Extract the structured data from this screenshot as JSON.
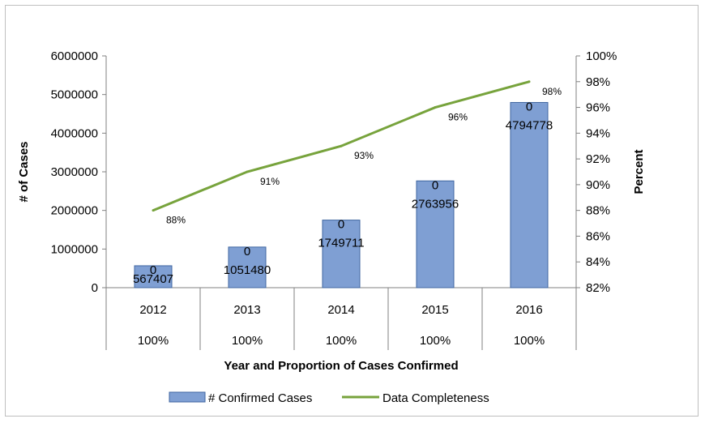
{
  "chart_data": {
    "type": "bar",
    "categories": [
      "2012",
      "2013",
      "2014",
      "2015",
      "2016"
    ],
    "category_sublabels": [
      "100%",
      "100%",
      "100%",
      "100%",
      "100%"
    ],
    "series": [
      {
        "name": "# Confirmed Cases",
        "type": "bar",
        "axis": "left",
        "values": [
          567407,
          1051480,
          1749711,
          2763956,
          4794778
        ],
        "value_labels": [
          "567407",
          "1051480",
          "1749711",
          "2763956",
          "4794778"
        ],
        "top_labels": [
          "0",
          "0",
          "0",
          "0",
          "0"
        ],
        "color": "#7f9fd3",
        "border_color": "#3f66a0"
      },
      {
        "name": "Data Completeness",
        "type": "line",
        "axis": "right",
        "values": [
          88,
          91,
          93,
          96,
          98
        ],
        "value_labels": [
          "88%",
          "91%",
          "93%",
          "96%",
          "98%"
        ],
        "color": "#77a33c"
      }
    ],
    "title": "",
    "xlabel": "Year and Proportion of Cases Confirmed",
    "ylabel": "# of Cases",
    "y2label": "Percent",
    "ylim": [
      0,
      6000000
    ],
    "y_ticks": [
      "0",
      "1000000",
      "2000000",
      "3000000",
      "4000000",
      "5000000",
      "6000000"
    ],
    "y2lim": [
      82,
      100
    ],
    "y2_ticks": [
      "82%",
      "84%",
      "86%",
      "88%",
      "90%",
      "92%",
      "94%",
      "96%",
      "98%",
      "100%"
    ],
    "grid": false,
    "legend_position": "bottom"
  }
}
